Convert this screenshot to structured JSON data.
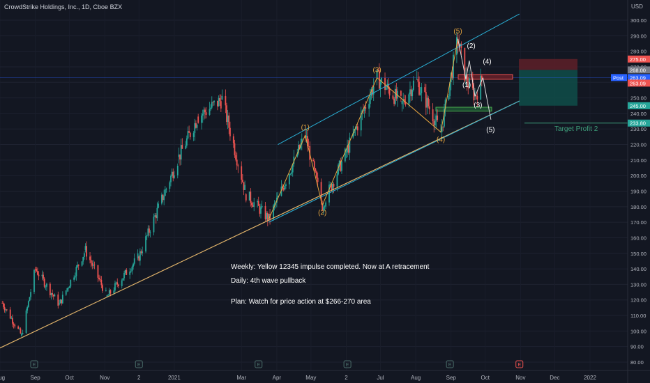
{
  "header": {
    "symbol_title": "CrowdStrike Holdings, Inc., 1D, Cboe BZX",
    "currency": "USD"
  },
  "colors": {
    "background": "#131722",
    "up_candle": "#26a69a",
    "down_candle": "#ef5350",
    "channel_line": "#2ab0d6",
    "trendline": "#e0b36a",
    "wave_orange": "#e8a63f",
    "wave_white": "#ffffff",
    "target_label": "#3d9e7a",
    "stop_zone": "#5a1f28",
    "profit_zone": "#0f4a47"
  },
  "chart_data": {
    "type": "candlestick",
    "ylim": [
      77,
      307
    ],
    "y_ticks": [
      "80.00",
      "90.00",
      "100.00",
      "110.00",
      "120.00",
      "130.00",
      "140.00",
      "150.00",
      "160.00",
      "170.00",
      "180.00",
      "190.00",
      "200.00",
      "210.00",
      "220.00",
      "230.00",
      "240.00",
      "250.00",
      "260.00",
      "270.00",
      "280.00",
      "290.00",
      "300.00"
    ],
    "x_ticks": [
      "Aug",
      "Sep",
      "Oct",
      "Nov",
      "2",
      "2021",
      "Mar",
      "Apr",
      "May",
      "2",
      "Jul",
      "Aug",
      "Sep",
      "Oct",
      "Nov",
      "Dec",
      "2022"
    ],
    "earnings_markers": [
      "E",
      "E",
      "E",
      "E",
      "E",
      "E",
      "E"
    ],
    "price_badges": [
      {
        "label": "275.00",
        "value": 275,
        "kind": "red"
      },
      {
        "label": "268.00",
        "value": 268,
        "kind": "gray"
      },
      {
        "label": "263.09",
        "value": 263.09,
        "kind": "blue",
        "tag": "Post"
      },
      {
        "label": "263.09",
        "value": 263.09,
        "kind": "red"
      },
      {
        "label": "245.00",
        "value": 245,
        "kind": "teal"
      },
      {
        "label": "233.80",
        "value": 233.8,
        "kind": "teal"
      }
    ],
    "key_points": [
      {
        "date": "2020-08-03",
        "price": 118
      },
      {
        "date": "2020-08-20",
        "price": 97
      },
      {
        "date": "2020-09-01",
        "price": 140
      },
      {
        "date": "2020-09-22",
        "price": 117
      },
      {
        "date": "2020-10-15",
        "price": 152
      },
      {
        "date": "2020-11-03",
        "price": 122
      },
      {
        "date": "2020-12-01",
        "price": 148
      },
      {
        "date": "2021-01-05",
        "price": 212
      },
      {
        "date": "2021-01-22",
        "price": 238
      },
      {
        "date": "2021-02-12",
        "price": 249
      },
      {
        "date": "2021-03-05",
        "price": 188
      },
      {
        "date": "2021-03-25",
        "price": 172
      },
      {
        "date": "2021-04-26",
        "price": 226
      },
      {
        "date": "2021-05-11",
        "price": 181
      },
      {
        "date": "2021-06-01",
        "price": 215
      },
      {
        "date": "2021-06-28",
        "price": 263
      },
      {
        "date": "2021-07-20",
        "price": 246
      },
      {
        "date": "2021-08-01",
        "price": 262
      },
      {
        "date": "2021-08-23",
        "price": 228
      },
      {
        "date": "2021-09-07",
        "price": 288
      },
      {
        "date": "2021-09-14",
        "price": 262
      },
      {
        "date": "2021-09-22",
        "price": 251
      },
      {
        "date": "2021-09-29",
        "price": 263
      }
    ],
    "wave_labels_orange": [
      {
        "text": "(1)",
        "date": "2021-04-26",
        "price": 226,
        "pos": "above"
      },
      {
        "text": "(2)",
        "date": "2021-05-11",
        "price": 181,
        "pos": "below"
      },
      {
        "text": "(3)",
        "date": "2021-06-28",
        "price": 263,
        "pos": "above"
      },
      {
        "text": "(4)",
        "date": "2021-08-23",
        "price": 228,
        "pos": "below"
      },
      {
        "text": "(5)",
        "date": "2021-09-07",
        "price": 288,
        "pos": "above"
      }
    ],
    "wave_labels_white": [
      {
        "text": "(2)",
        "date": "2021-09-15",
        "price": 282
      },
      {
        "text": "(1)",
        "date": "2021-09-11",
        "price": 257
      },
      {
        "text": "(4)",
        "date": "2021-09-29",
        "price": 272
      },
      {
        "text": "(3)",
        "date": "2021-09-21",
        "price": 244
      },
      {
        "text": "(5)",
        "date": "2021-10-02",
        "price": 228
      }
    ],
    "annotations": {
      "target_profit": "Target Profit 2",
      "note_weekly": "Weekly: Yellow 12345 impulse completed. Now at A retracement",
      "note_daily": "Daily: 4th wave pullback",
      "note_plan": "Plan: Watch for price action at $266-270 area"
    },
    "levels": {
      "stop": 275,
      "entry": 268,
      "target1": 245,
      "target2": 233.8,
      "last": 263.09
    }
  }
}
